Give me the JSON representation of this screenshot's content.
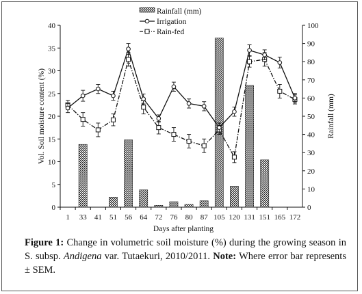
{
  "chart_data": {
    "type": "bar+line",
    "x_label": "Days after planting",
    "y_left_label": "Vol. Soil moisture content (%)",
    "y_right_label": "Rainfall (mm)",
    "y_left_range": [
      0,
      40
    ],
    "y_right_range": [
      0,
      100
    ],
    "y_left_ticks": [
      "0",
      "5",
      "10",
      "15",
      "20",
      "25",
      "30",
      "35",
      "40"
    ],
    "y_right_ticks": [
      "0",
      "10",
      "20",
      "30",
      "40",
      "50",
      "60",
      "70",
      "80",
      "90",
      "100"
    ],
    "categories": [
      "1",
      "33",
      "41",
      "51",
      "56",
      "64",
      "72",
      "76",
      "80",
      "87",
      "105",
      "120",
      "131",
      "151",
      "165",
      "172"
    ],
    "legend": {
      "rainfall": "Rainfall (mm)",
      "irrigation": "Irrigation",
      "rainfed": "Rain-fed"
    },
    "rainfall": [
      0,
      34.5,
      0,
      5.5,
      37,
      9.5,
      1,
      3,
      1.5,
      3.5,
      93,
      11.5,
      67,
      26,
      0,
      0
    ],
    "irrigation": {
      "values": [
        21.8,
        24.5,
        26,
        24.5,
        34.8,
        23.8,
        19.5,
        26.5,
        22.8,
        22.2,
        17.5,
        21,
        34.5,
        33.5,
        31.8,
        24
      ],
      "err": [
        1,
        1.2,
        1,
        1,
        1.2,
        1.1,
        0.8,
        1,
        1,
        1,
        1,
        1,
        1.2,
        1.1,
        1.2,
        1
      ]
    },
    "rainfed": {
      "values": [
        22.5,
        19.3,
        17,
        19.2,
        32.5,
        22,
        17.5,
        16,
        14.5,
        13.5,
        17,
        11,
        32,
        32.5,
        25.5,
        23.7
      ],
      "err": [
        1,
        1.5,
        1.5,
        1.3,
        1.5,
        1.5,
        1.4,
        1.5,
        1.5,
        1.5,
        1,
        1.2,
        1.2,
        1.5,
        1.5,
        1
      ]
    }
  },
  "caption": {
    "label": "Figure 1:",
    "text1": " Change in volumetric soil moisture (%) during the growing season in S. subsp. ",
    "species": "Andigena",
    "text2": " var. Tutaekuri, 2010/2011. ",
    "note_label": "Note:",
    "note_text": " Where error bar represents ± SEM."
  }
}
